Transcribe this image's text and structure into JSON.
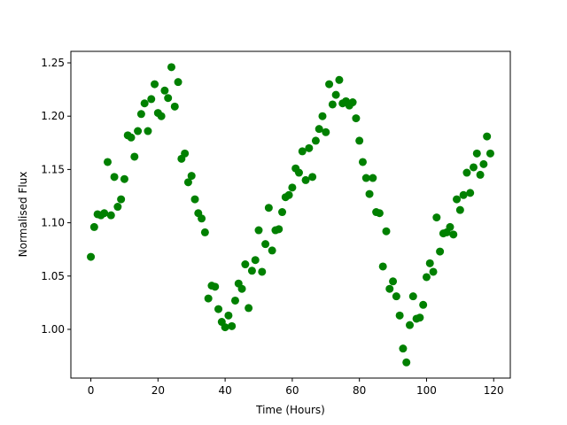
{
  "chart_data": {
    "type": "scatter",
    "xlabel": "Time (Hours)",
    "ylabel": "Normalised Flux",
    "color": "#008000",
    "xlim": [
      -5.95,
      124.95
    ],
    "xticks": [
      0,
      20,
      40,
      60,
      80,
      100,
      120
    ],
    "ylim": [
      0.9543,
      1.2608
    ],
    "yticks": [
      {
        "value": 1.0,
        "label": "1.00"
      },
      1.05,
      {
        "value": 1.1,
        "label": "1.10"
      },
      1.15,
      {
        "value": 1.2,
        "label": "1.20"
      },
      1.25
    ],
    "x": [
      0,
      1,
      2,
      3,
      4,
      5,
      6,
      7,
      8,
      9,
      10,
      11,
      12,
      13,
      14,
      15,
      16,
      17,
      18,
      19,
      20,
      21,
      22,
      23,
      24,
      25,
      26,
      27,
      28,
      29,
      30,
      31,
      32,
      33,
      34,
      35,
      36,
      37,
      38,
      39,
      40,
      41,
      42,
      43,
      44,
      45,
      46,
      47,
      48,
      49,
      50,
      51,
      52,
      53,
      54,
      55,
      56,
      57,
      58,
      59,
      60,
      61,
      62,
      63,
      64,
      65,
      66,
      67,
      68,
      69,
      70,
      71,
      72,
      73,
      74,
      75,
      76,
      77,
      78,
      79,
      80,
      81,
      82,
      83,
      84,
      85,
      86,
      87,
      88,
      89,
      90,
      91,
      92,
      93,
      94,
      95,
      96,
      97,
      98,
      99,
      100,
      101,
      102,
      103,
      104,
      105,
      106,
      107,
      108,
      109,
      110,
      111,
      112,
      113,
      114,
      115,
      116,
      117,
      118,
      119
    ],
    "values": [
      1.068,
      1.096,
      1.108,
      1.107,
      1.109,
      1.157,
      1.107,
      1.143,
      1.115,
      1.122,
      1.141,
      1.182,
      1.18,
      1.162,
      1.186,
      1.202,
      1.212,
      1.186,
      1.216,
      1.23,
      1.203,
      1.2,
      1.224,
      1.217,
      1.246,
      1.209,
      1.232,
      1.16,
      1.165,
      1.138,
      1.144,
      1.122,
      1.109,
      1.104,
      1.091,
      1.029,
      1.041,
      1.04,
      1.019,
      1.007,
      1.002,
      1.013,
      1.003,
      1.027,
      1.043,
      1.038,
      1.061,
      1.02,
      1.055,
      1.065,
      1.093,
      1.054,
      1.08,
      1.114,
      1.074,
      1.093,
      1.094,
      1.11,
      1.124,
      1.126,
      1.133,
      1.151,
      1.147,
      1.167,
      1.14,
      1.17,
      1.143,
      1.177,
      1.188,
      1.2,
      1.185,
      1.23,
      1.211,
      1.22,
      1.234,
      1.212,
      1.214,
      1.21,
      1.213,
      1.198,
      1.177,
      1.157,
      1.142,
      1.127,
      1.142,
      1.11,
      1.109,
      1.059,
      1.092,
      1.038,
      1.045,
      1.031,
      1.013,
      0.982,
      0.969,
      1.004,
      1.031,
      1.01,
      1.011,
      1.023,
      1.049,
      1.062,
      1.054,
      1.105,
      1.073,
      1.09,
      1.091,
      1.096,
      1.089,
      1.122,
      1.112,
      1.126,
      1.147,
      1.128,
      1.152,
      1.165,
      1.145,
      1.155,
      1.181,
      1.165
    ]
  }
}
